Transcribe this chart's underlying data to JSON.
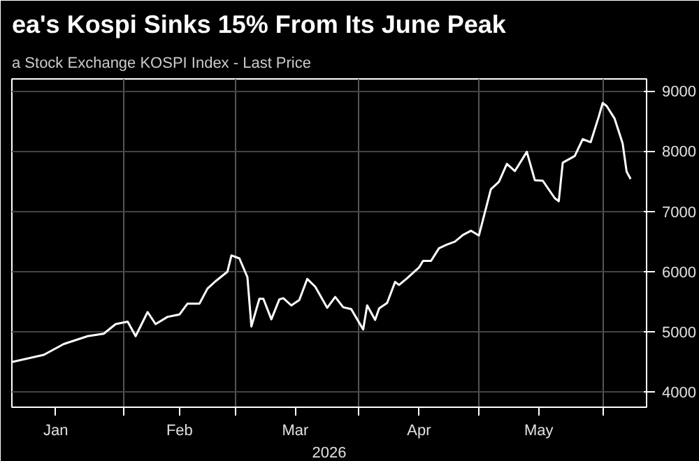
{
  "chart_data": {
    "type": "line",
    "title": "ea's Kospi Sinks 15% From Its June Peak",
    "subtitle": "a Stock Exchange KOSPI Index - Last Price",
    "xlabel": "2026",
    "x": [
      "2026-01-04",
      "2026-01-12",
      "2026-01-17",
      "2026-01-23",
      "2026-01-27",
      "2026-01-30",
      "2026-02-02",
      "2026-02-04",
      "2026-02-07",
      "2026-02-09",
      "2026-02-12",
      "2026-02-15",
      "2026-02-17",
      "2026-02-20",
      "2026-02-22",
      "2026-02-24",
      "2026-02-27",
      "2026-02-28",
      "2026-03-02",
      "2026-03-04",
      "2026-03-05",
      "2026-03-07",
      "2026-03-08",
      "2026-03-10",
      "2026-03-12",
      "2026-03-13",
      "2026-03-15",
      "2026-03-17",
      "2026-03-19",
      "2026-03-21",
      "2026-03-24",
      "2026-03-26",
      "2026-03-28",
      "2026-03-30",
      "2026-04-02",
      "2026-04-03",
      "2026-04-05",
      "2026-04-06",
      "2026-04-08",
      "2026-04-10",
      "2026-04-11",
      "2026-04-13",
      "2026-04-16",
      "2026-04-17",
      "2026-04-19",
      "2026-04-21",
      "2026-04-23",
      "2026-04-25",
      "2026-04-27",
      "2026-04-29",
      "2026-05-01",
      "2026-05-04",
      "2026-05-06",
      "2026-05-08",
      "2026-05-10",
      "2026-05-13",
      "2026-05-15",
      "2026-05-17",
      "2026-05-20",
      "2026-05-21",
      "2026-05-22",
      "2026-05-25",
      "2026-05-27",
      "2026-05-29",
      "2026-05-31",
      "2026-06-01",
      "2026-06-02",
      "2026-06-04",
      "2026-06-06",
      "2026-06-07",
      "2026-06-08"
    ],
    "series": [
      {
        "color": "#ffffff",
        "values": [
          4500,
          4620,
          4800,
          4930,
          4970,
          5130,
          5170,
          4930,
          5330,
          5130,
          5250,
          5290,
          5470,
          5470,
          5720,
          5840,
          6000,
          6270,
          6220,
          5910,
          5090,
          5550,
          5550,
          5210,
          5540,
          5560,
          5440,
          5530,
          5880,
          5750,
          5400,
          5580,
          5410,
          5380,
          5040,
          5440,
          5200,
          5390,
          5480,
          5830,
          5780,
          5890,
          6070,
          6180,
          6180,
          6390,
          6450,
          6500,
          6610,
          6680,
          6600,
          7370,
          7490,
          7790,
          7670,
          7990,
          7520,
          7510,
          7220,
          7170,
          7810,
          7920,
          8200,
          8150,
          8570,
          8800,
          8750,
          8540,
          8130,
          7660,
          7540
        ]
      }
    ],
    "xlim": [
      "2026-01-04",
      "2026-06-12"
    ],
    "xticks": [
      {
        "value": "2026-01-15",
        "label": "Jan"
      },
      {
        "value": "2026-02-01",
        "label": null
      },
      {
        "value": "2026-02-15",
        "label": "Feb"
      },
      {
        "value": "2026-03-01",
        "label": null
      },
      {
        "value": "2026-03-16",
        "label": "Mar"
      },
      {
        "value": "2026-04-01",
        "label": null
      },
      {
        "value": "2026-04-16",
        "label": "Apr"
      },
      {
        "value": "2026-05-01",
        "label": null
      },
      {
        "value": "2026-05-16",
        "label": "May"
      },
      {
        "value": "2026-06-01",
        "label": null
      }
    ],
    "ylim": [
      3750,
      9200
    ],
    "yticks": [
      4000,
      5000,
      6000,
      7000,
      8000,
      9000
    ],
    "grid": true
  }
}
